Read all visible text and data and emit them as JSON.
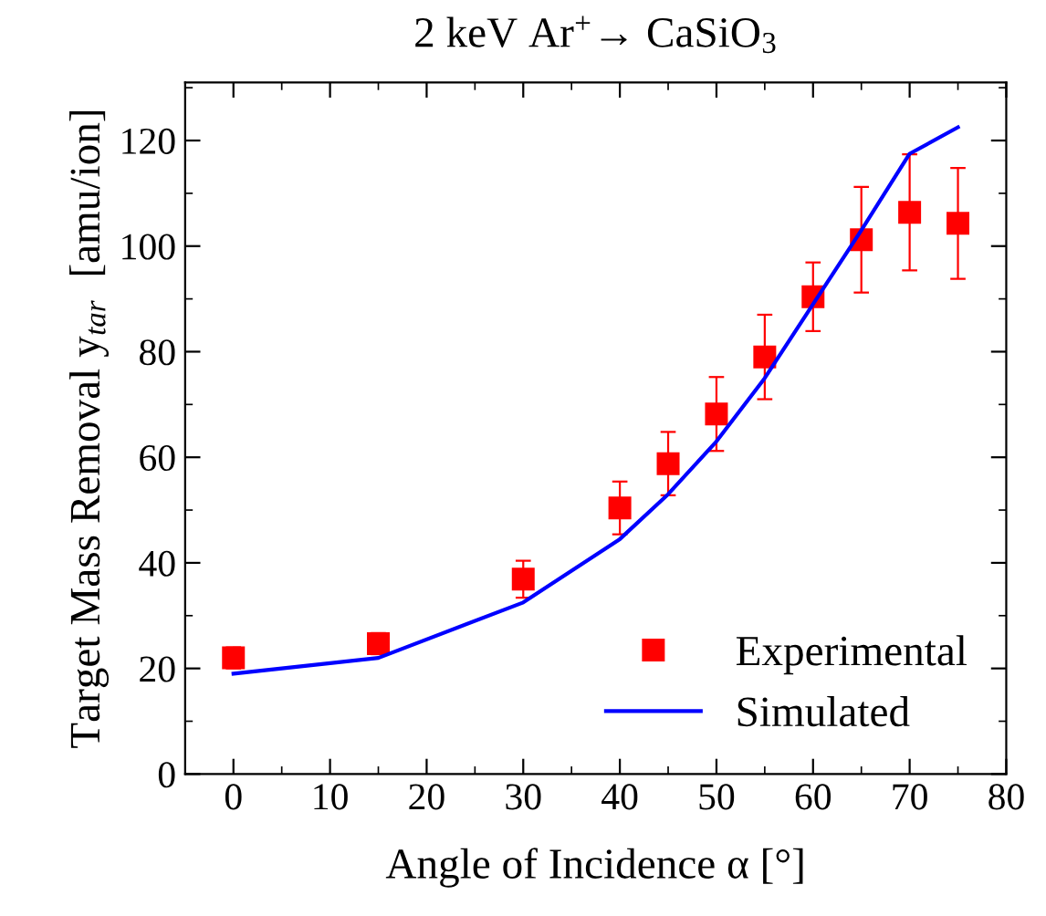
{
  "chart_data": {
    "type": "scatter",
    "title": "2 keV Ar$^{+}$→ CaSiO$_{3}$",
    "xlabel": "Angle of Incidence α [°]",
    "ylabel": "Target Mass Removal y$_{tar}$  [amu/ion]",
    "xlim": [
      -5,
      80
    ],
    "xticks": [
      0,
      10,
      20,
      30,
      40,
      50,
      60,
      70,
      80
    ],
    "ylim": [
      0,
      131
    ],
    "yticks": [
      0,
      20,
      40,
      60,
      80,
      100,
      120
    ],
    "grid": false,
    "legend": "bottom right",
    "series": [
      {
        "name": "Experimental",
        "marker": "square",
        "color": "#ff0000",
        "x": [
          0,
          15,
          30,
          40,
          45,
          50,
          55,
          60,
          65,
          70,
          75
        ],
        "values": [
          22,
          24.7,
          36.9,
          50.4,
          58.8,
          68.2,
          79,
          90.4,
          101.2,
          106.4,
          104.3
        ],
        "errors": [
          2,
          2,
          3.5,
          5,
          6,
          7,
          8,
          6.5,
          10,
          11,
          10.5
        ]
      },
      {
        "name": "Simulated",
        "type": "line",
        "marker": "none",
        "line_style": "solid",
        "color": "#0000ff",
        "x": [
          0,
          15,
          30,
          40,
          45,
          50,
          55,
          60,
          65,
          70,
          75
        ],
        "values": [
          19,
          22,
          32.5,
          44.5,
          53,
          63,
          75,
          89,
          103,
          117.5,
          122.5
        ]
      }
    ]
  }
}
